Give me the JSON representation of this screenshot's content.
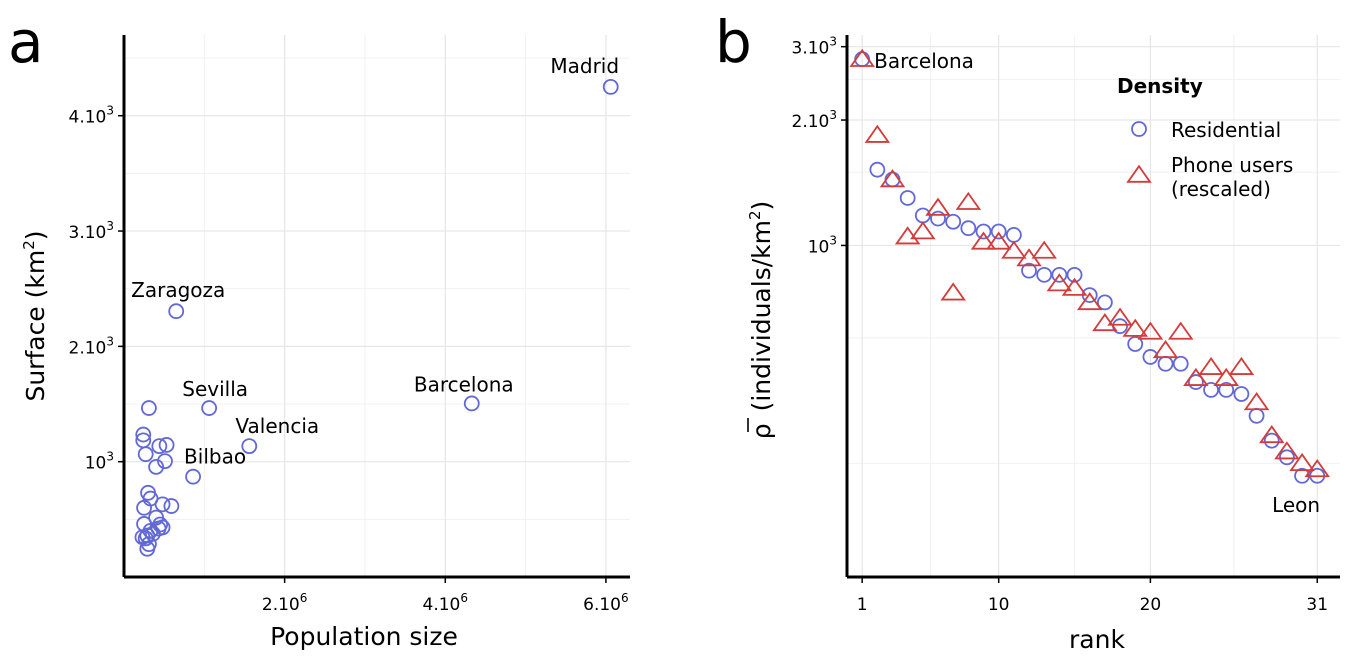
{
  "chart_data": [
    {
      "type": "scatter",
      "panel_label": "a",
      "xlabel": "Population size",
      "ylabel": "Surface (km",
      "ylabel_sup": "2",
      "ylabel_end": ")",
      "xlim": [
        0,
        6300000
      ],
      "ylim": [
        0,
        4700
      ],
      "grid": true,
      "marker": "circle",
      "color": "#6268d6",
      "xticks": [
        {
          "value": 2000000,
          "base": "2.10",
          "exp": "6"
        },
        {
          "value": 4000000,
          "base": "4.10",
          "exp": "6"
        },
        {
          "value": 6000000,
          "base": "6.10",
          "exp": "6"
        }
      ],
      "yticks": [
        {
          "value": 1000,
          "base": "10",
          "exp": "3"
        },
        {
          "value": 2000,
          "base": "2.10",
          "exp": "3"
        },
        {
          "value": 3000,
          "base": "3.10",
          "exp": "3"
        },
        {
          "value": 4000,
          "base": "4.10",
          "exp": "3"
        }
      ],
      "points": [
        {
          "x": 6060000,
          "y": 4250,
          "label": "Madrid"
        },
        {
          "x": 4330000,
          "y": 1505,
          "label": "Barcelona"
        },
        {
          "x": 650000,
          "y": 2305,
          "label": "Zaragoza"
        },
        {
          "x": 1060000,
          "y": 1465,
          "label": "Sevilla"
        },
        {
          "x": 1560000,
          "y": 1135,
          "label": "Valencia"
        },
        {
          "x": 860000,
          "y": 870,
          "label": "Bilbao"
        },
        {
          "x": 310000,
          "y": 1465
        },
        {
          "x": 240000,
          "y": 1235
        },
        {
          "x": 240000,
          "y": 1185
        },
        {
          "x": 440000,
          "y": 1135
        },
        {
          "x": 530000,
          "y": 1145
        },
        {
          "x": 270000,
          "y": 1065
        },
        {
          "x": 510000,
          "y": 1005
        },
        {
          "x": 400000,
          "y": 955
        },
        {
          "x": 300000,
          "y": 730
        },
        {
          "x": 330000,
          "y": 680
        },
        {
          "x": 480000,
          "y": 630
        },
        {
          "x": 590000,
          "y": 615
        },
        {
          "x": 250000,
          "y": 600
        },
        {
          "x": 400000,
          "y": 515
        },
        {
          "x": 450000,
          "y": 455
        },
        {
          "x": 250000,
          "y": 460
        },
        {
          "x": 480000,
          "y": 430
        },
        {
          "x": 330000,
          "y": 400
        },
        {
          "x": 360000,
          "y": 375
        },
        {
          "x": 290000,
          "y": 360
        },
        {
          "x": 430000,
          "y": 420
        },
        {
          "x": 230000,
          "y": 345
        },
        {
          "x": 270000,
          "y": 335
        },
        {
          "x": 310000,
          "y": 285
        },
        {
          "x": 290000,
          "y": 245
        }
      ]
    },
    {
      "type": "scatter",
      "panel_label": "b",
      "xlabel": "rank",
      "ylabel": "(individuals/km",
      "ylabel_symbol": "ρ",
      "ylabel_sup": "2",
      "ylabel_end": ")",
      "xlim": [
        0,
        32.5
      ],
      "ylim": [
        160,
        3200
      ],
      "y_scale": "log",
      "grid": true,
      "xticks": [
        {
          "value": 1,
          "label": "1"
        },
        {
          "value": 10,
          "label": "10"
        },
        {
          "value": 20,
          "label": "20"
        },
        {
          "value": 31,
          "label": "31"
        }
      ],
      "yticks": [
        {
          "value": 1000,
          "base": "10",
          "exp": "3"
        },
        {
          "value": 2000,
          "base": "2.10",
          "exp": "3"
        },
        {
          "value": 3000,
          "base": "3.10",
          "exp": "3"
        }
      ],
      "legend": {
        "title": "Density",
        "position": "top-right"
      },
      "annotations": [
        {
          "x": 1,
          "y": 2800,
          "label": "Barcelona"
        },
        {
          "x": 30,
          "y": 210,
          "label": "Leon"
        }
      ],
      "series": [
        {
          "name": "Residential",
          "marker": "circle",
          "color": "#6268d6",
          "x": [
            1,
            2,
            3,
            4,
            5,
            6,
            7,
            8,
            9,
            10,
            11,
            12,
            13,
            14,
            15,
            16,
            17,
            18,
            19,
            20,
            21,
            22,
            23,
            24,
            25,
            26,
            27,
            28,
            29,
            30,
            31
          ],
          "y": [
            2800,
            1520,
            1440,
            1300,
            1180,
            1160,
            1140,
            1100,
            1080,
            1080,
            1060,
            870,
            850,
            850,
            850,
            760,
            730,
            640,
            580,
            540,
            520,
            520,
            470,
            450,
            450,
            440,
            390,
            340,
            310,
            280,
            280
          ]
        },
        {
          "name": "Phone users\n(rescaled)",
          "marker": "triangle",
          "color": "#d43b3b",
          "x": [
            1,
            2,
            3,
            4,
            5,
            6,
            7,
            8,
            9,
            10,
            11,
            12,
            13,
            14,
            15,
            16,
            17,
            18,
            19,
            20,
            21,
            22,
            23,
            24,
            25,
            26,
            27,
            28,
            29,
            30,
            31
          ],
          "y": [
            2800,
            1840,
            1440,
            1050,
            1080,
            1230,
            770,
            1270,
            1020,
            1020,
            970,
            930,
            970,
            810,
            790,
            730,
            650,
            670,
            630,
            620,
            560,
            620,
            480,
            510,
            480,
            510,
            420,
            350,
            320,
            300,
            290
          ]
        }
      ]
    }
  ]
}
